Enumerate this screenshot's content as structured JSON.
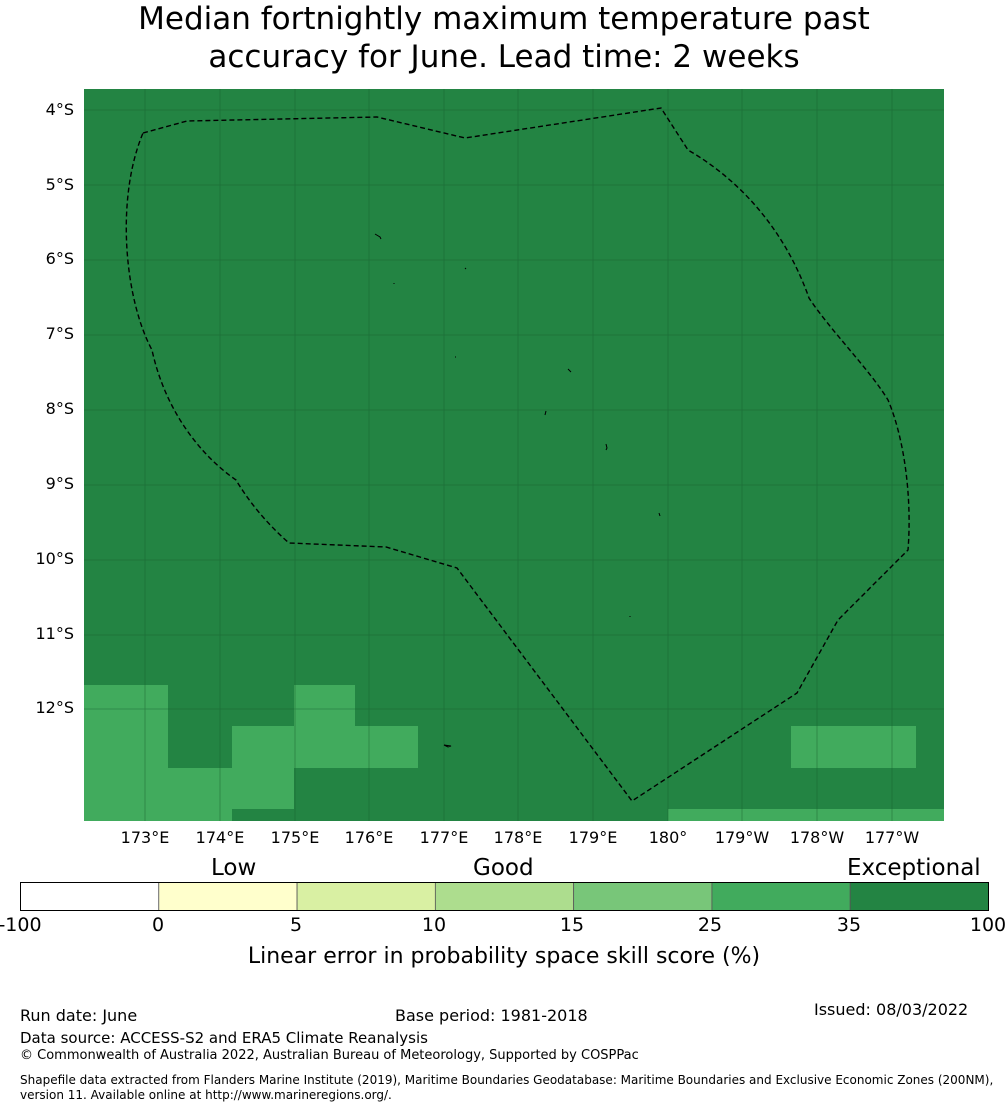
{
  "title_line1": "Median fortnightly maximum temperature past",
  "title_line2": "accuracy for June. Lead time: 2 weeks",
  "lat_labels": [
    "4°S",
    "5°S",
    "6°S",
    "7°S",
    "8°S",
    "9°S",
    "10°S",
    "11°S",
    "12°S"
  ],
  "lon_labels": [
    "173°E",
    "174°E",
    "175°E",
    "176°E",
    "177°E",
    "178°E",
    "179°E",
    "180°",
    "179°W",
    "178°W",
    "177°W"
  ],
  "categories": {
    "low": "Low",
    "good": "Good",
    "exceptional": "Exceptional"
  },
  "colorbar": {
    "ticks": [
      "-100",
      "0",
      "5",
      "10",
      "15",
      "25",
      "35",
      "100"
    ],
    "colors": [
      "#ffffff",
      "#ffffcc",
      "#d9f0a3",
      "#addd8e",
      "#78c679",
      "#41ab5d",
      "#238443"
    ],
    "title": "Linear error in probability space skill score (%)"
  },
  "map_colors": {
    "dominant": "#238443",
    "secondary": "#41ab5d"
  },
  "footer": {
    "run_date": "Run date: June",
    "base_period": "Base period: 1981-2018",
    "issued": "Issued: 08/03/2022",
    "data_source": "Data source: ACCESS-S2 and ERA5 Climate Reanalysis",
    "copyright": "© Commonwealth of Australia 2022, Australian Bureau of Meteorology, Supported by COSPPac",
    "shapefile_line1": "Shapefile data extracted from Flanders Marine Institute (2019), Maritime Boundaries Geodatabase: Maritime Boundaries and Exclusive Economic Zones (200NM),",
    "shapefile_line2": "version 11. Available online at http://www.marineregions.org/."
  }
}
